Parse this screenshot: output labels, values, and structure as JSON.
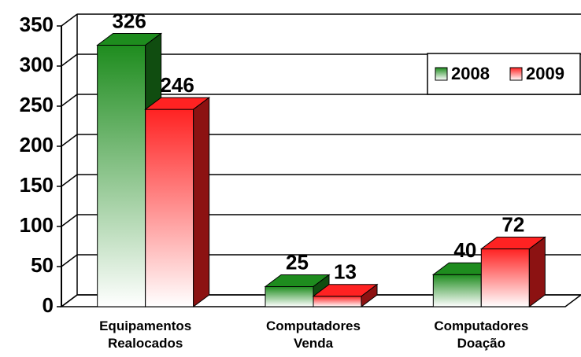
{
  "chart_data": {
    "type": "bar3d",
    "categories": [
      "Equipamentos Realocados",
      "Computadores Venda",
      "Computadores Doação"
    ],
    "series": [
      {
        "name": "2008",
        "color": "#1e8c1e",
        "values": [
          326,
          25,
          40
        ]
      },
      {
        "name": "2009",
        "color": "#ff2222",
        "values": [
          246,
          13,
          72
        ]
      }
    ],
    "ylim": [
      0,
      350
    ],
    "yticks": [
      0,
      50,
      100,
      150,
      200,
      250,
      300,
      350
    ],
    "grid": true,
    "legend": "top-right"
  }
}
